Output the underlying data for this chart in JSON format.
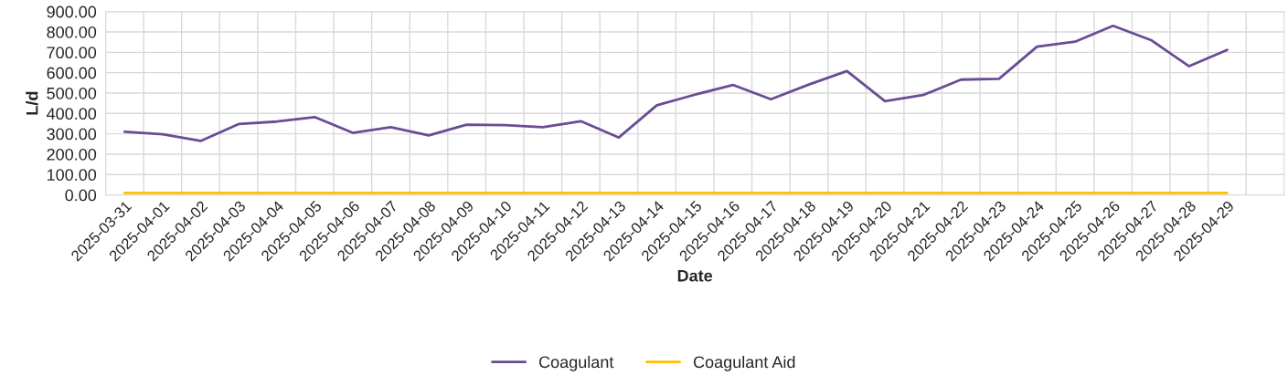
{
  "chart_data": {
    "type": "line",
    "xlabel": "Date",
    "ylabel": "L/d",
    "categories": [
      "2025-03-31",
      "2025-04-01",
      "2025-04-02",
      "2025-04-03",
      "2025-04-04",
      "2025-04-05",
      "2025-04-06",
      "2025-04-07",
      "2025-04-08",
      "2025-04-09",
      "2025-04-10",
      "2025-04-11",
      "2025-04-12",
      "2025-04-13",
      "2025-04-14",
      "2025-04-15",
      "2025-04-16",
      "2025-04-17",
      "2025-04-18",
      "2025-04-19",
      "2025-04-20",
      "2025-04-21",
      "2025-04-22",
      "2025-04-23",
      "2025-04-24",
      "2025-04-25",
      "2025-04-26",
      "2025-04-27",
      "2025-04-28",
      "2025-04-29"
    ],
    "series": [
      {
        "name": "Coagulant",
        "color": "#6a4c93",
        "values": [
          310,
          298,
          265,
          348,
          360,
          382,
          305,
          333,
          292,
          345,
          343,
          333,
          362,
          282,
          440,
          492,
          540,
          470,
          542,
          608,
          460,
          490,
          566,
          570,
          728,
          752,
          830,
          760,
          632,
          712
        ]
      },
      {
        "name": "Coagulant Aid",
        "color": "#ffc000",
        "values": [
          10,
          10,
          10,
          10,
          10,
          10,
          10,
          10,
          10,
          10,
          10,
          10,
          10,
          10,
          10,
          10,
          10,
          10,
          10,
          10,
          10,
          10,
          10,
          10,
          10,
          10,
          10,
          10,
          10,
          10
        ]
      }
    ],
    "ylim": [
      0,
      900
    ],
    "yticks": [
      {
        "value": 0,
        "label": "0.00"
      },
      {
        "value": 100,
        "label": "100.00"
      },
      {
        "value": 200,
        "label": "200.00"
      },
      {
        "value": 300,
        "label": "300.00"
      },
      {
        "value": 400,
        "label": "400.00"
      },
      {
        "value": 500,
        "label": "500.00"
      },
      {
        "value": 600,
        "label": "600.00"
      },
      {
        "value": 700,
        "label": "700.00"
      },
      {
        "value": 800,
        "label": "800.00"
      },
      {
        "value": 900,
        "label": "900.00"
      }
    ],
    "grid": true,
    "legend": "bottom",
    "marker": "none",
    "line_style": "solid"
  }
}
